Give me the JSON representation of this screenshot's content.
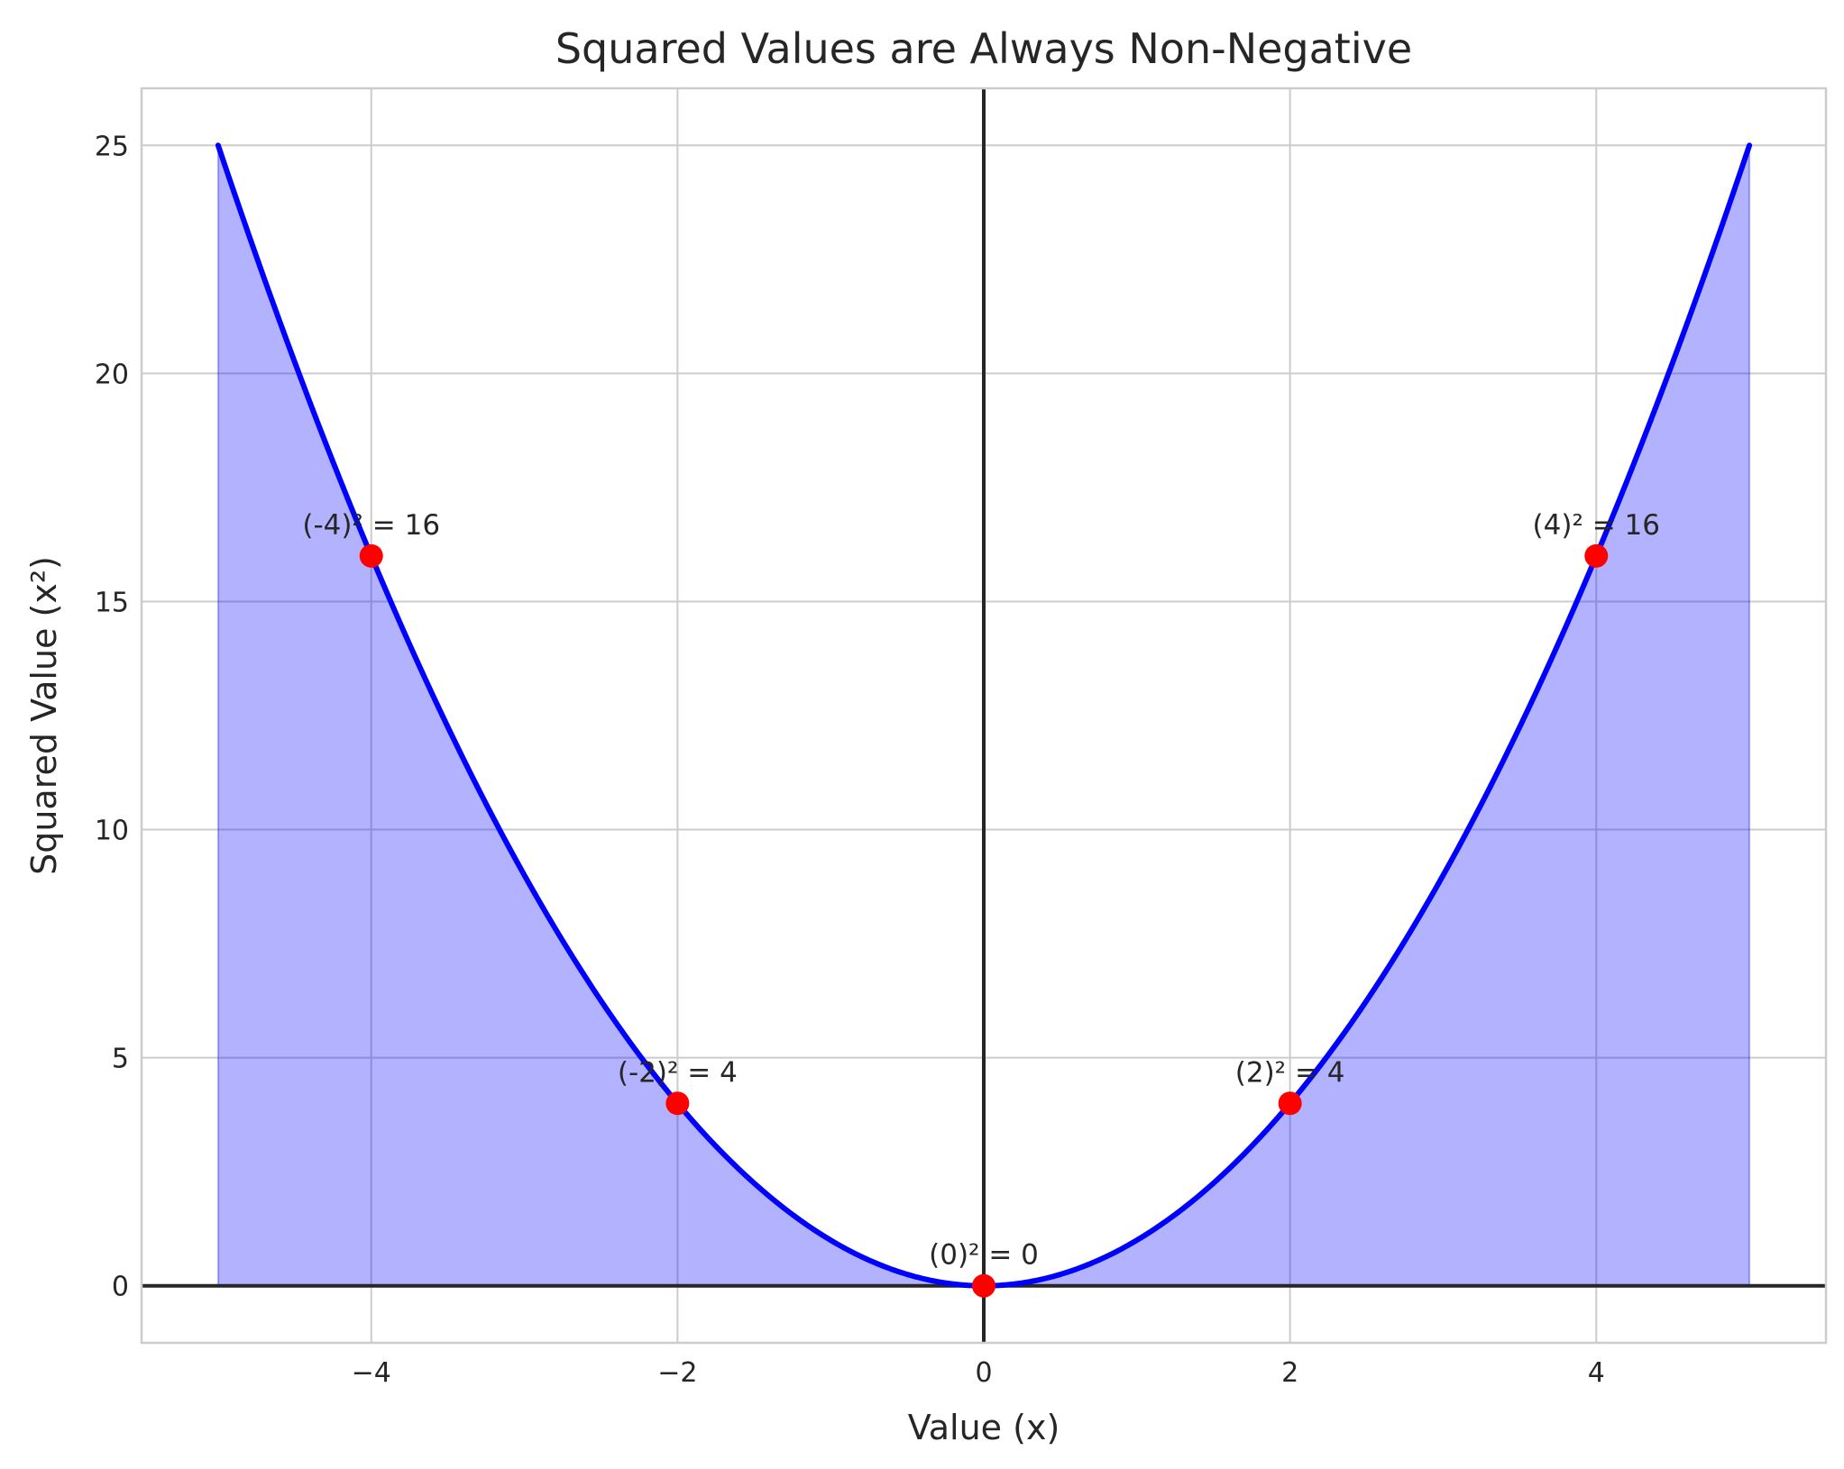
{
  "chart_data": {
    "type": "line",
    "title": "Squared Values are Always Non-Negative",
    "xlabel": "Value (x)",
    "ylabel": "Squared Value (x²)",
    "xlim": [
      -5.5,
      5.5
    ],
    "ylim": [
      -1.25,
      26.25
    ],
    "x_ticks": [
      -4,
      -2,
      0,
      2,
      4
    ],
    "x_tick_labels": [
      "−4",
      "−2",
      "0",
      "2",
      "4"
    ],
    "y_ticks": [
      0,
      5,
      10,
      15,
      20,
      25
    ],
    "y_tick_labels": [
      "0",
      "5",
      "10",
      "15",
      "20",
      "25"
    ],
    "grid": true,
    "curve": {
      "function": "x^2",
      "x_range": [
        -5,
        5
      ],
      "color": "#0000ff",
      "fill_color": "#0000ff",
      "fill_opacity": 0.3
    },
    "points": {
      "color": "#ff0000",
      "data": [
        {
          "x": -4,
          "y": 16,
          "label": "(-4)² = 16"
        },
        {
          "x": -2,
          "y": 4,
          "label": "(-2)² = 4"
        },
        {
          "x": 0,
          "y": 0,
          "label": "(0)² = 0"
        },
        {
          "x": 2,
          "y": 4,
          "label": "(2)² = 4"
        },
        {
          "x": 4,
          "y": 16,
          "label": "(4)² = 16"
        }
      ]
    },
    "reference_lines": {
      "color": "#262626",
      "x": 0,
      "y": 0
    }
  }
}
